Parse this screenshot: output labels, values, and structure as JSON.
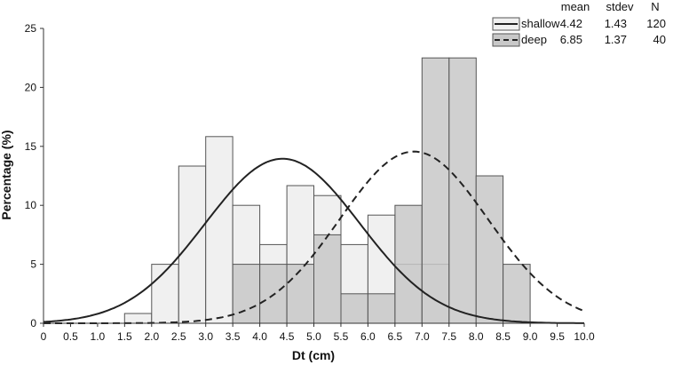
{
  "chart_data": {
    "type": "bar",
    "title": "",
    "xlabel": "Dt (cm)",
    "ylabel": "Percentage (%)",
    "xlim": [
      0,
      10
    ],
    "ylim": [
      0,
      25
    ],
    "bin_width": 0.5,
    "x_ticks": [
      "0",
      "0.5",
      "1.0",
      "1.5",
      "2.0",
      "2.5",
      "3.0",
      "3.5",
      "4.0",
      "4.5",
      "5.0",
      "5.5",
      "6.0",
      "6.5",
      "7.0",
      "7.5",
      "8.0",
      "8.5",
      "9.0",
      "9.5",
      "10.0"
    ],
    "y_ticks": [
      "0",
      "5",
      "10",
      "15",
      "20",
      "25"
    ],
    "grid": false,
    "legend_position": "top-right",
    "series": [
      {
        "name": "shallow",
        "color": "#f0f0f0",
        "bin_starts": [
          1.5,
          2.0,
          2.5,
          3.0,
          3.5,
          4.0,
          4.5,
          5.0,
          5.5,
          6.0,
          6.5,
          7.0
        ],
        "values": [
          0.83,
          5.0,
          13.33,
          15.83,
          10.0,
          6.67,
          11.67,
          10.83,
          6.67,
          9.17,
          5.0,
          5.0
        ]
      },
      {
        "name": "deep",
        "color": "#c8c8c8",
        "bin_starts": [
          3.5,
          4.0,
          4.5,
          5.0,
          5.5,
          6.0,
          6.5,
          7.0,
          7.5,
          8.0,
          8.5
        ],
        "values": [
          5.0,
          5.0,
          5.0,
          7.5,
          2.5,
          2.5,
          10.0,
          22.5,
          22.5,
          12.5,
          5.0
        ]
      }
    ],
    "fit_curves": [
      {
        "series": "shallow",
        "line_style": "solid",
        "mean": 4.42,
        "stdev": 1.43
      },
      {
        "series": "deep",
        "line_style": "dashed",
        "mean": 6.85,
        "stdev": 1.37
      }
    ],
    "stats_table": {
      "headers": [
        "mean",
        "stdev",
        "N"
      ],
      "rows": [
        {
          "name": "shallow",
          "mean": "4.42",
          "stdev": "1.43",
          "N": "120"
        },
        {
          "name": "deep",
          "mean": "6.85",
          "stdev": "1.37",
          "N": "40"
        }
      ]
    }
  }
}
